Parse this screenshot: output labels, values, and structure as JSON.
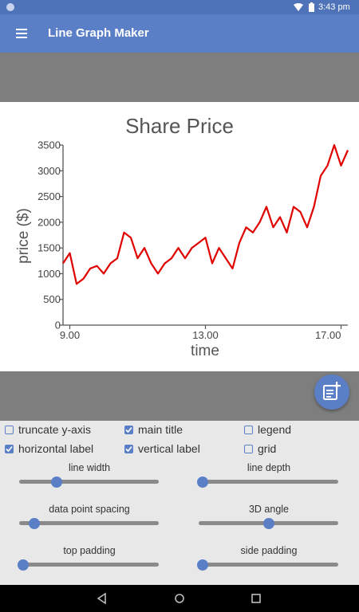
{
  "status": {
    "time": "3:43 pm"
  },
  "appbar": {
    "title": "Line Graph Maker",
    "menu_icon": "menu-icon"
  },
  "fab": {
    "icon": "note-add-icon"
  },
  "colors": {
    "primary": "#5b7fc6",
    "line": "#e00000",
    "gray_bar": "#7e7e7e"
  },
  "chart_data": {
    "type": "line",
    "title": "Share Price",
    "xlabel": "time",
    "ylabel": "price ($)",
    "xlim": [
      8.8,
      17.2
    ],
    "ylim": [
      0,
      3500
    ],
    "xticks": [
      "9.00",
      "13.00",
      "17.00"
    ],
    "yticks": [
      "0",
      "500",
      "1000",
      "1500",
      "2000",
      "2500",
      "3000",
      "3500"
    ],
    "grid": false,
    "legend": false,
    "series": [
      {
        "color": "#e00000",
        "x": [
          8.8,
          9.0,
          9.2,
          9.4,
          9.6,
          9.8,
          10.0,
          10.2,
          10.4,
          10.6,
          10.8,
          11.0,
          11.2,
          11.4,
          11.6,
          11.8,
          12.0,
          12.2,
          12.4,
          12.6,
          12.8,
          13.0,
          13.2,
          13.4,
          13.6,
          13.8,
          14.0,
          14.2,
          14.4,
          14.6,
          14.8,
          15.0,
          15.2,
          15.4,
          15.6,
          15.8,
          16.0,
          16.2,
          16.4,
          16.6,
          16.8,
          17.0,
          17.2
        ],
        "y": [
          1200,
          1400,
          800,
          900,
          1100,
          1150,
          1000,
          1200,
          1300,
          1800,
          1700,
          1300,
          1500,
          1200,
          1000,
          1200,
          1300,
          1500,
          1300,
          1500,
          1600,
          1700,
          1200,
          1500,
          1300,
          1100,
          1600,
          1900,
          1800,
          2000,
          2300,
          1900,
          2100,
          1800,
          2300,
          2200,
          1900,
          2300,
          2900,
          3100,
          3500,
          3100,
          3400
        ]
      }
    ]
  },
  "controls": {
    "checkboxes": [
      {
        "label": "truncate y-axis",
        "checked": false
      },
      {
        "label": "main title",
        "checked": true
      },
      {
        "label": "legend",
        "checked": false
      },
      {
        "label": "horizontal label",
        "checked": true
      },
      {
        "label": "vertical label",
        "checked": true
      },
      {
        "label": "grid",
        "checked": false
      }
    ],
    "sliders": [
      {
        "label": "line width",
        "value": 0.27
      },
      {
        "label": "line depth",
        "value": 0.03
      },
      {
        "label": "data point spacing",
        "value": 0.11
      },
      {
        "label": "3D angle",
        "value": 0.5
      },
      {
        "label": "top padding",
        "value": 0.03
      },
      {
        "label": "side padding",
        "value": 0.03
      }
    ]
  }
}
